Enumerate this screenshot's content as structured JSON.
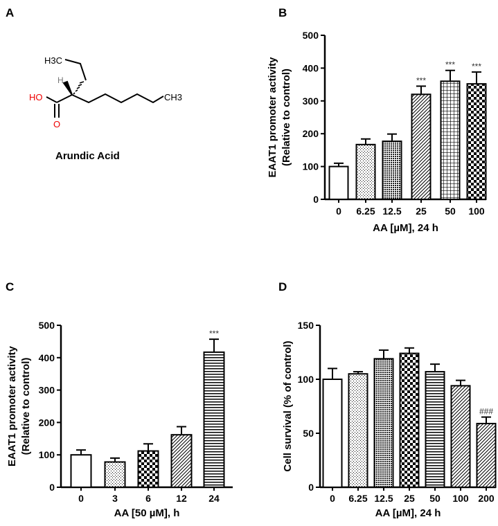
{
  "panels": {
    "a": "A",
    "b": "B",
    "c": "C",
    "d": "D"
  },
  "molecule": {
    "name": "Arundic Acid",
    "labels": {
      "h3c": "H3C",
      "h": "H",
      "ho": "HO",
      "o": "O",
      "ch3": "CH3"
    }
  },
  "chart_data": [
    {
      "id": "b",
      "type": "bar",
      "title": "",
      "ylabel": "EAAT1 promoter activity",
      "ylabel2": "(Relative to control)",
      "xlabel": "AA [µM], 24 h",
      "categories": [
        "0",
        "6.25",
        "12.5",
        "25",
        "50",
        "100"
      ],
      "values": [
        100,
        167,
        177,
        320,
        360,
        352
      ],
      "errors": [
        10,
        17,
        22,
        25,
        33,
        36
      ],
      "annotations": [
        "",
        "",
        "",
        "***",
        "***",
        "***"
      ],
      "ylim": [
        0,
        500
      ],
      "yticks": [
        "0",
        "100",
        "200",
        "300",
        "400",
        "500"
      ]
    },
    {
      "id": "c",
      "type": "bar",
      "title": "",
      "ylabel": "EAAT1 promoter activity",
      "ylabel2": "(Relative to control)",
      "xlabel": "AA [50 µM], h",
      "categories": [
        "0",
        "3",
        "6",
        "12",
        "24"
      ],
      "values": [
        100,
        78,
        112,
        162,
        417
      ],
      "errors": [
        15,
        12,
        22,
        25,
        40
      ],
      "annotations": [
        "",
        "",
        "",
        "",
        "***"
      ],
      "ylim": [
        0,
        500
      ],
      "yticks": [
        "0",
        "100",
        "200",
        "300",
        "400",
        "500"
      ]
    },
    {
      "id": "d",
      "type": "bar",
      "title": "",
      "ylabel": "Cell survival (% of control)",
      "ylabel2": "",
      "xlabel": "AA [µM], 24 h",
      "categories": [
        "0",
        "6.25",
        "12.5",
        "25",
        "50",
        "100",
        "200"
      ],
      "values": [
        100,
        105,
        119,
        124,
        107,
        94,
        59
      ],
      "errors": [
        10,
        2,
        8,
        5,
        7,
        5,
        6
      ],
      "annotations": [
        "",
        "",
        "",
        "",
        "",
        "",
        "###"
      ],
      "ylim": [
        0,
        150
      ],
      "yticks": [
        "0",
        "50",
        "100",
        "150"
      ]
    }
  ]
}
